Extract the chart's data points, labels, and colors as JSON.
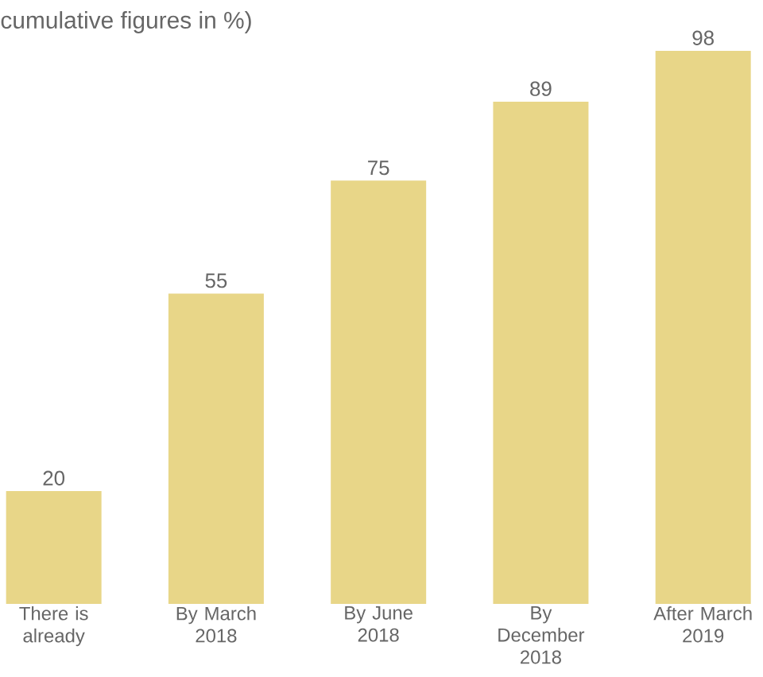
{
  "chart_data": {
    "type": "bar",
    "title": "cumulative figures in %)",
    "categories": [
      "There is already",
      "By March 2018",
      "By June 2018",
      "By December 2018",
      "After March 2019"
    ],
    "values": [
      20,
      55,
      75,
      89,
      98
    ],
    "color": "#e8d688",
    "data_labels": true
  }
}
